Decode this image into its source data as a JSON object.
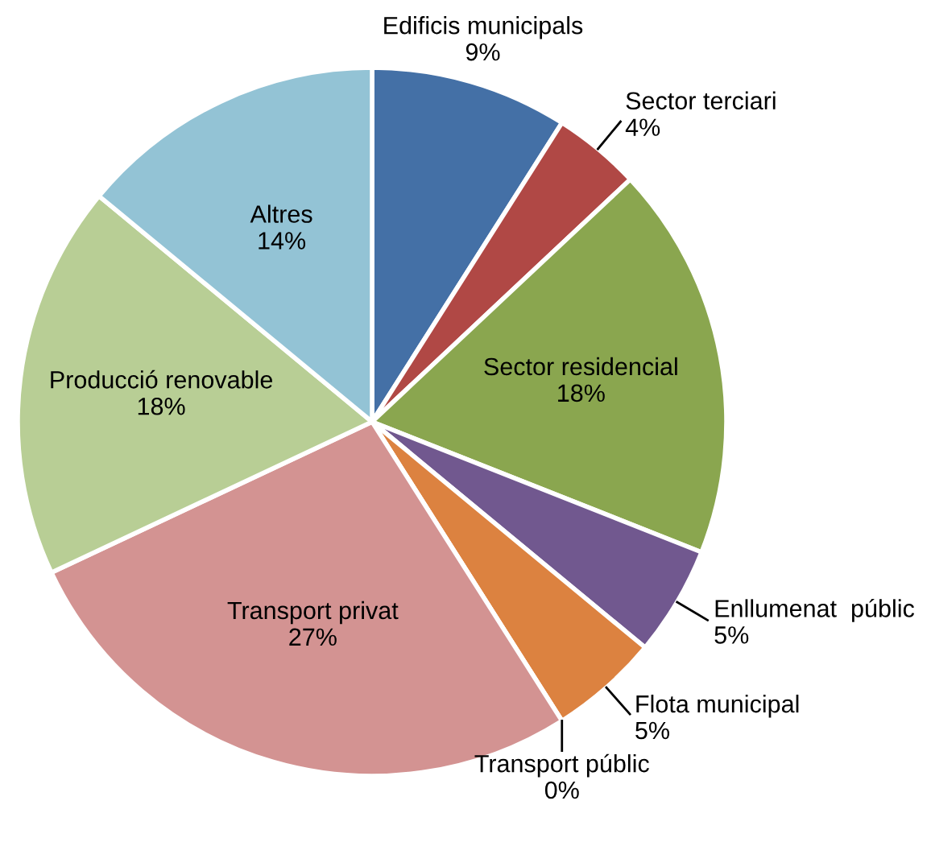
{
  "chart_data": {
    "type": "pie",
    "categories": [
      "Edificis municipals",
      "Sector terciari",
      "Sector residencial",
      "Enllumenat  públic",
      "Flota municipal",
      "Transport públic",
      "Transport privat",
      "Producció renovable",
      "Altres"
    ],
    "values": [
      9,
      4,
      18,
      5,
      5,
      0,
      27,
      18,
      14
    ],
    "value_labels": [
      "9%",
      "4%",
      "18%",
      "5%",
      "5%",
      "0%",
      "27%",
      "18%",
      "14%"
    ],
    "colors": [
      "#4470a6",
      "#b04845",
      "#8aa64f",
      "#71588f",
      "#dc8240",
      "#4bacc6",
      "#d39392",
      "#b8ce95",
      "#93c3d5"
    ]
  }
}
